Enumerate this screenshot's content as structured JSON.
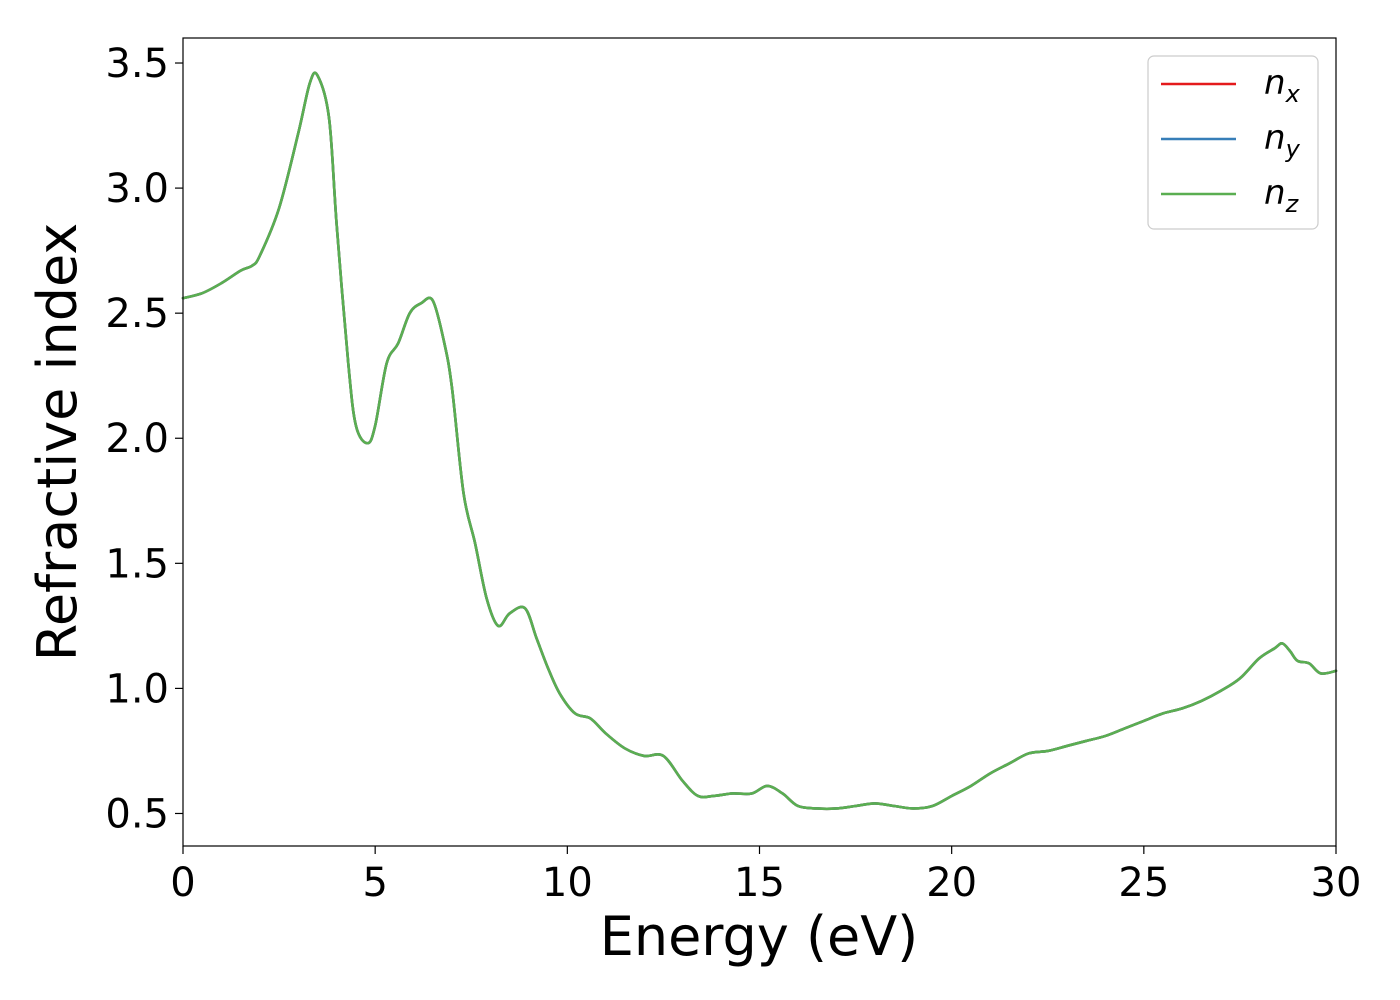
{
  "chart_data": {
    "type": "line",
    "title": "",
    "xlabel": "Energy (eV)",
    "ylabel": "Refractive index",
    "xlim": [
      0,
      30
    ],
    "ylim": [
      0.37,
      3.6
    ],
    "xticks": [
      0,
      5,
      10,
      15,
      20,
      25,
      30
    ],
    "xtick_labels": [
      "0",
      "5",
      "10",
      "15",
      "20",
      "25",
      "30"
    ],
    "yticks": [
      0.5,
      1.0,
      1.5,
      2.0,
      2.5,
      3.0,
      3.5
    ],
    "ytick_labels": [
      "0.5",
      "1.0",
      "1.5",
      "2.0",
      "2.5",
      "3.0",
      "3.5"
    ],
    "grid": false,
    "legend_position": "top-right",
    "x": [
      0,
      0.5,
      1,
      1.5,
      1.8,
      2,
      2.5,
      3,
      3.3,
      3.5,
      3.8,
      4,
      4.3,
      4.5,
      4.8,
      5,
      5.3,
      5.6,
      5.9,
      6.2,
      6.5,
      6.8,
      7,
      7.3,
      7.6,
      7.9,
      8.2,
      8.5,
      8.9,
      9.2,
      9.5,
      9.8,
      10.2,
      10.6,
      11,
      11.5,
      12,
      12.5,
      13,
      13.4,
      13.8,
      14.3,
      14.8,
      15.2,
      15.6,
      16,
      16.5,
      17,
      17.5,
      18,
      18.5,
      19,
      19.5,
      20,
      20.5,
      21,
      21.5,
      22,
      22.5,
      23,
      23.5,
      24,
      24.5,
      25,
      25.5,
      26,
      26.5,
      27,
      27.5,
      28,
      28.4,
      28.6,
      28.8,
      29,
      29.3,
      29.6,
      30
    ],
    "series": [
      {
        "name": "n_x",
        "color": "#e41a1c",
        "values": [
          2.56,
          2.58,
          2.62,
          2.67,
          2.69,
          2.73,
          2.92,
          3.22,
          3.42,
          3.45,
          3.28,
          2.85,
          2.3,
          2.05,
          1.98,
          2.05,
          2.3,
          2.38,
          2.5,
          2.54,
          2.55,
          2.38,
          2.2,
          1.78,
          1.58,
          1.36,
          1.25,
          1.3,
          1.32,
          1.2,
          1.08,
          0.98,
          0.9,
          0.88,
          0.82,
          0.76,
          0.73,
          0.73,
          0.63,
          0.57,
          0.57,
          0.58,
          0.58,
          0.61,
          0.58,
          0.53,
          0.52,
          0.52,
          0.53,
          0.54,
          0.53,
          0.52,
          0.53,
          0.57,
          0.61,
          0.66,
          0.7,
          0.74,
          0.75,
          0.77,
          0.79,
          0.81,
          0.84,
          0.87,
          0.9,
          0.92,
          0.95,
          0.99,
          1.04,
          1.12,
          1.16,
          1.18,
          1.15,
          1.11,
          1.1,
          1.06,
          1.07
        ]
      },
      {
        "name": "n_y",
        "color": "#377eb8",
        "values": [
          2.56,
          2.58,
          2.62,
          2.67,
          2.69,
          2.73,
          2.92,
          3.22,
          3.42,
          3.45,
          3.28,
          2.85,
          2.3,
          2.05,
          1.98,
          2.05,
          2.3,
          2.38,
          2.5,
          2.54,
          2.55,
          2.38,
          2.2,
          1.78,
          1.58,
          1.36,
          1.25,
          1.3,
          1.32,
          1.2,
          1.08,
          0.98,
          0.9,
          0.88,
          0.82,
          0.76,
          0.73,
          0.73,
          0.63,
          0.57,
          0.57,
          0.58,
          0.58,
          0.61,
          0.58,
          0.53,
          0.52,
          0.52,
          0.53,
          0.54,
          0.53,
          0.52,
          0.53,
          0.57,
          0.61,
          0.66,
          0.7,
          0.74,
          0.75,
          0.77,
          0.79,
          0.81,
          0.84,
          0.87,
          0.9,
          0.92,
          0.95,
          0.99,
          1.04,
          1.12,
          1.16,
          1.18,
          1.15,
          1.11,
          1.1,
          1.06,
          1.07
        ]
      },
      {
        "name": "n_z",
        "color": "#5aae51",
        "values": [
          2.56,
          2.58,
          2.62,
          2.67,
          2.69,
          2.73,
          2.92,
          3.22,
          3.42,
          3.45,
          3.28,
          2.85,
          2.3,
          2.05,
          1.98,
          2.05,
          2.3,
          2.38,
          2.5,
          2.54,
          2.55,
          2.38,
          2.2,
          1.78,
          1.58,
          1.36,
          1.25,
          1.3,
          1.32,
          1.2,
          1.08,
          0.98,
          0.9,
          0.88,
          0.82,
          0.76,
          0.73,
          0.73,
          0.63,
          0.57,
          0.57,
          0.58,
          0.58,
          0.61,
          0.58,
          0.53,
          0.52,
          0.52,
          0.53,
          0.54,
          0.53,
          0.52,
          0.53,
          0.57,
          0.61,
          0.66,
          0.7,
          0.74,
          0.75,
          0.77,
          0.79,
          0.81,
          0.84,
          0.87,
          0.9,
          0.92,
          0.95,
          0.99,
          1.04,
          1.12,
          1.16,
          1.18,
          1.15,
          1.11,
          1.1,
          1.06,
          1.07
        ]
      }
    ],
    "legend": [
      {
        "base": "n",
        "sub": "x",
        "color": "#e41a1c"
      },
      {
        "base": "n",
        "sub": "y",
        "color": "#377eb8"
      },
      {
        "base": "n",
        "sub": "z",
        "color": "#5aae51"
      }
    ]
  }
}
